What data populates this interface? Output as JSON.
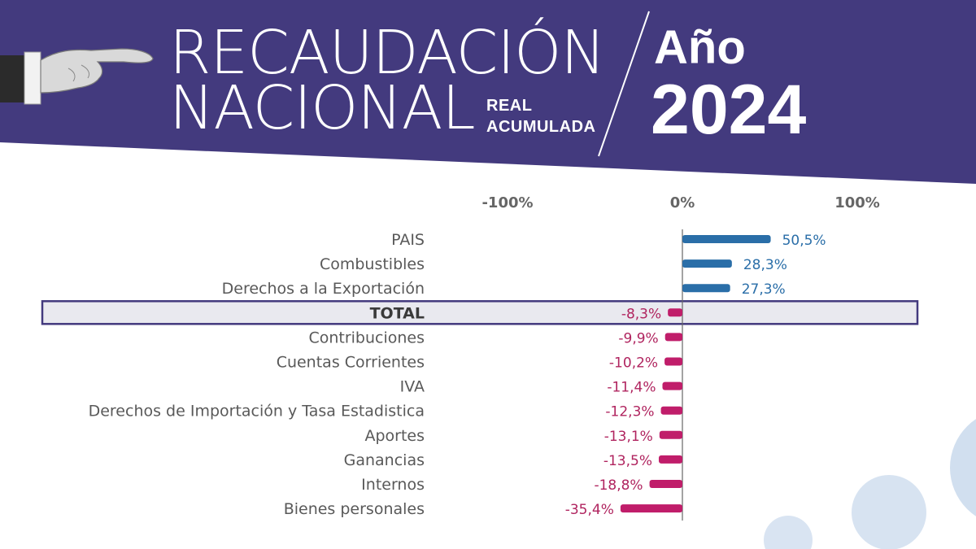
{
  "header": {
    "title_line1": "RECAUDACIÓN",
    "title_line2": "NACIONAL",
    "subtitle_line1": "REAL",
    "subtitle_line2": "ACUMULADA",
    "year_label": "Año",
    "year_value": "2024"
  },
  "colors": {
    "banner": "#433a7e",
    "positive_bar": "#2a6ea8",
    "positive_label": "#2a6ea8",
    "negative_bar": "#c01d6a",
    "negative_label": "#b0245f",
    "category_label": "#595959",
    "total_row_fill": "#e9e9ef",
    "total_row_border": "#433a7e",
    "decor_circles": "#c9d9ec"
  },
  "chart_data": {
    "type": "bar",
    "orientation": "horizontal",
    "xlim": [
      -100,
      100
    ],
    "x_ticks": [
      "-100%",
      "0%",
      "100%"
    ],
    "grid": false,
    "highlight_category": "TOTAL",
    "categories": [
      "PAIS",
      "Combustibles",
      "Derechos a la Exportación",
      "TOTAL",
      "Contribuciones",
      "Cuentas Corrientes",
      "IVA",
      "Derechos de Importación y Tasa Estadistica",
      "Aportes",
      "Ganancias",
      "Internos",
      "Bienes personales"
    ],
    "values": [
      50.5,
      28.3,
      27.3,
      -8.3,
      -9.9,
      -10.2,
      -11.4,
      -12.3,
      -13.1,
      -13.5,
      -18.8,
      -35.4
    ],
    "data_labels": [
      "50,5%",
      "28,3%",
      "27,3%",
      "-8,3%",
      "-9,9%",
      "-10,2%",
      "-11,4%",
      "-12,3%",
      "-13,1%",
      "-13,5%",
      "-18,8%",
      "-35,4%"
    ]
  }
}
